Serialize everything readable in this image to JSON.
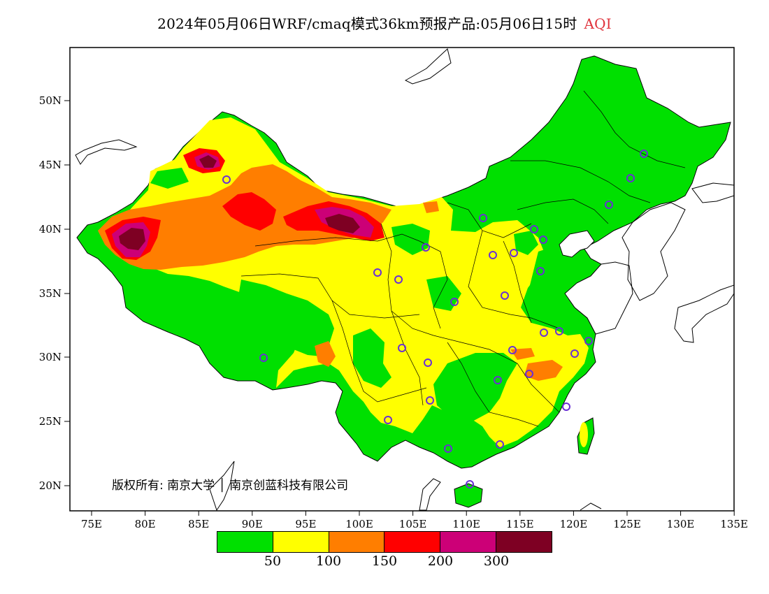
{
  "title": {
    "product": "2024年05月06日WRF/cmaq模式36km预报产品:05月06日15时",
    "variable": "AQI"
  },
  "map": {
    "lat_ticks": [
      "50N",
      "45N",
      "40N",
      "35N",
      "30N",
      "25N",
      "20N"
    ],
    "lon_ticks": [
      "75E",
      "80E",
      "85E",
      "90E",
      "95E",
      "100E",
      "105E",
      "110E",
      "115E",
      "120E",
      "125E",
      "130E",
      "135E"
    ],
    "copyright": "版权所有: 南京大学 │ 南京创蓝科技有限公司",
    "stations_color": "#6a2fd6"
  },
  "legend": {
    "colors": [
      "#00e000",
      "#ffff00",
      "#ff7e00",
      "#ff0000",
      "#cc0077",
      "#7e0023"
    ],
    "labels": [
      "50",
      "100",
      "150",
      "200",
      "300"
    ]
  }
}
